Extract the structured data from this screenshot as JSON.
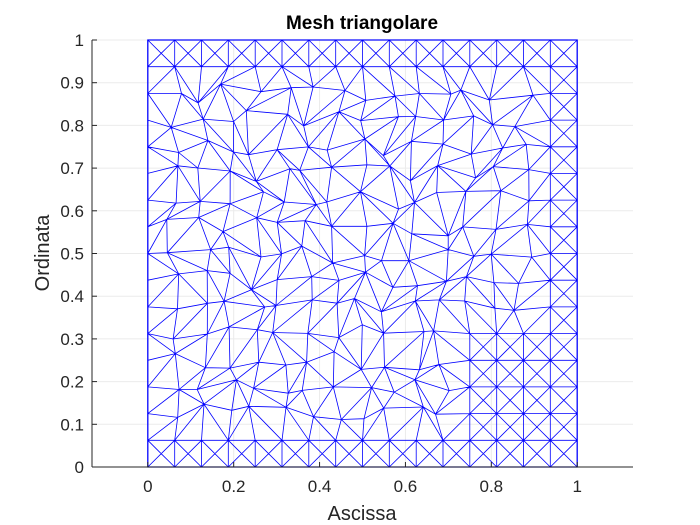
{
  "chart_data": {
    "type": "mesh",
    "title": "Mesh triangolare",
    "xlabel": "Ascissa",
    "ylabel": "Ordinata",
    "xlim": [
      -0.13,
      1.13
    ],
    "ylim": [
      0,
      1
    ],
    "xticks": [
      0,
      0.2,
      0.4,
      0.6,
      0.8,
      1
    ],
    "xtick_labels": [
      "0",
      "0.2",
      "0.4",
      "0.6",
      "0.8",
      "1"
    ],
    "yticks": [
      0,
      0.1,
      0.2,
      0.3,
      0.4,
      0.5,
      0.6,
      0.7,
      0.8,
      0.9,
      1
    ],
    "ytick_labels": [
      "0",
      "0.1",
      "0.2",
      "0.3",
      "0.4",
      "0.5",
      "0.6",
      "0.7",
      "0.8",
      "0.9",
      "1"
    ],
    "grid": true,
    "domain": {
      "xmin": 0,
      "xmax": 1,
      "ymin": 0,
      "ymax": 1
    },
    "mesh_color": "#0000ff",
    "axis_color": "#262626",
    "grid_color": "#ebebeb"
  }
}
